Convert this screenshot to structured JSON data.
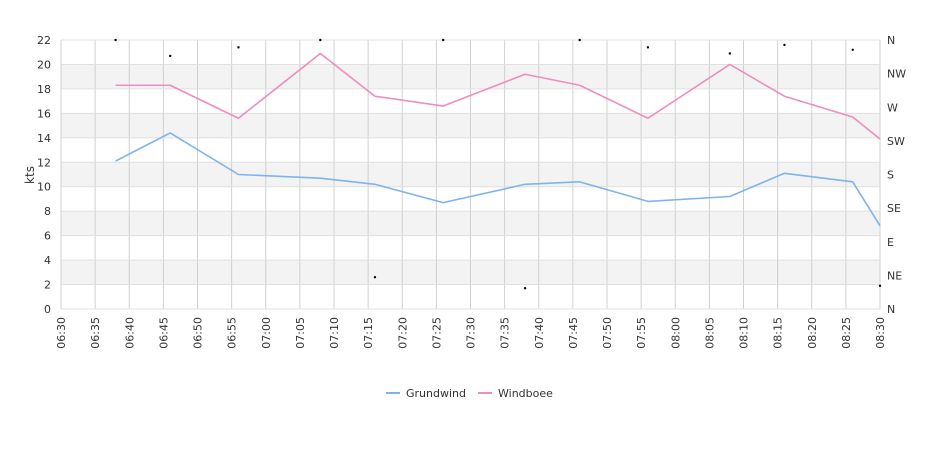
{
  "chart_data": {
    "type": "line",
    "ylabel": "kts",
    "ylim": [
      0,
      22
    ],
    "y_ticks": [
      "0",
      "2",
      "4",
      "6",
      "8",
      "10",
      "12",
      "14",
      "16",
      "18",
      "20",
      "22"
    ],
    "x_ticks": [
      "06:30",
      "06:35",
      "06:40",
      "06:45",
      "06:50",
      "06:55",
      "07:00",
      "07:05",
      "07:10",
      "07:15",
      "07:20",
      "07:25",
      "07:30",
      "07:35",
      "07:40",
      "07:45",
      "07:50",
      "07:55",
      "08:00",
      "08:05",
      "08:10",
      "08:15",
      "08:20",
      "08:25",
      "08:30"
    ],
    "x_range": [
      "06:30",
      "08:30"
    ],
    "right_axis_ticks": [
      "N",
      "NE",
      "E",
      "SE",
      "S",
      "SW",
      "W",
      "NW",
      "N"
    ],
    "grid": true,
    "legend_position": "bottom-center",
    "x": [
      "06:38",
      "06:46",
      "06:56",
      "07:08",
      "07:16",
      "07:26",
      "07:38",
      "07:46",
      "07:56",
      "08:08",
      "08:16",
      "08:26",
      "08:30"
    ],
    "series": [
      {
        "name": "Grundwind",
        "color": "#7cb5ec",
        "values": [
          12.1,
          14.4,
          11.0,
          10.7,
          10.2,
          8.7,
          10.2,
          10.4,
          8.8,
          9.2,
          11.1,
          10.4,
          6.8
        ]
      },
      {
        "name": "Windboee",
        "color": "#f08cc0",
        "values": [
          18.3,
          18.3,
          15.6,
          20.9,
          17.4,
          16.6,
          19.2,
          18.3,
          15.6,
          20.0,
          17.4,
          15.7,
          13.9
        ]
      }
    ],
    "direction_markers": [
      {
        "x": "06:38",
        "y": 22.0
      },
      {
        "x": "06:46",
        "y": 20.7
      },
      {
        "x": "06:56",
        "y": 21.4
      },
      {
        "x": "07:08",
        "y": 22.0
      },
      {
        "x": "07:16",
        "y": 2.6
      },
      {
        "x": "07:26",
        "y": 22.0
      },
      {
        "x": "07:38",
        "y": 1.7
      },
      {
        "x": "07:46",
        "y": 22.0
      },
      {
        "x": "07:56",
        "y": 21.4
      },
      {
        "x": "08:08",
        "y": 20.9
      },
      {
        "x": "08:16",
        "y": 21.6
      },
      {
        "x": "08:26",
        "y": 21.2
      },
      {
        "x": "08:30",
        "y": 1.9
      }
    ]
  }
}
